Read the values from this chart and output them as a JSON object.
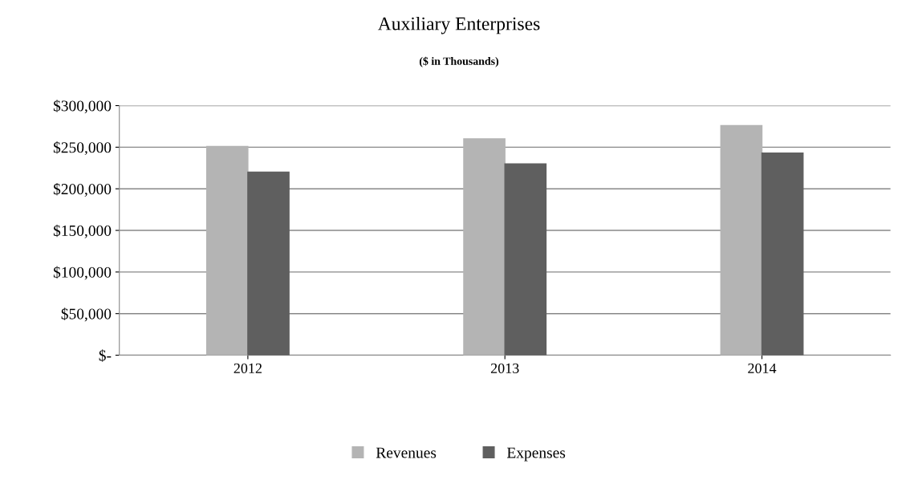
{
  "chart_data": {
    "type": "bar",
    "title": "Auxiliary Enterprises",
    "subtitle": "($ in Thousands)",
    "categories": [
      "2012",
      "2013",
      "2014"
    ],
    "series": [
      {
        "name": "Revenues",
        "color": "#b4b4b4",
        "values": [
          251000,
          260000,
          276000
        ]
      },
      {
        "name": "Expenses",
        "color": "#5f5f5f",
        "values": [
          220000,
          230000,
          243000
        ]
      }
    ],
    "ylim": [
      0,
      300000
    ],
    "yticks": [
      {
        "value": 0,
        "label": "$-"
      },
      {
        "value": 50000,
        "label": "$50,000"
      },
      {
        "value": 100000,
        "label": "$100,000"
      },
      {
        "value": 150000,
        "label": "$150,000"
      },
      {
        "value": 200000,
        "label": "$200,000"
      },
      {
        "value": 250000,
        "label": "$250,000"
      },
      {
        "value": 300000,
        "label": "$300,000"
      }
    ],
    "grid": "y",
    "legend": "bottom"
  }
}
